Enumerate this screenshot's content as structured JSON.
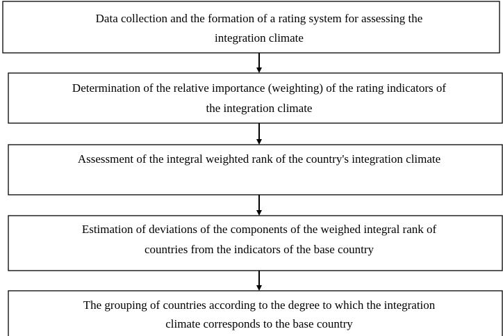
{
  "steps": [
    {
      "lines": [
        "Data collection and the formation of a rating system for assessing the",
        "integration climate"
      ]
    },
    {
      "lines": [
        "Determination of the relative importance (weighting) of the rating indicators of",
        "the integration climate"
      ]
    },
    {
      "lines": [
        "Assessment of the integral weighted rank of the country's integration climate"
      ]
    },
    {
      "lines": [
        "Estimation of deviations of the components of the weighed integral rank of",
        "countries from the indicators of the base country"
      ]
    },
    {
      "lines": [
        "The grouping of countries according to the degree to which the integration",
        "climate corresponds to the base country"
      ]
    }
  ]
}
